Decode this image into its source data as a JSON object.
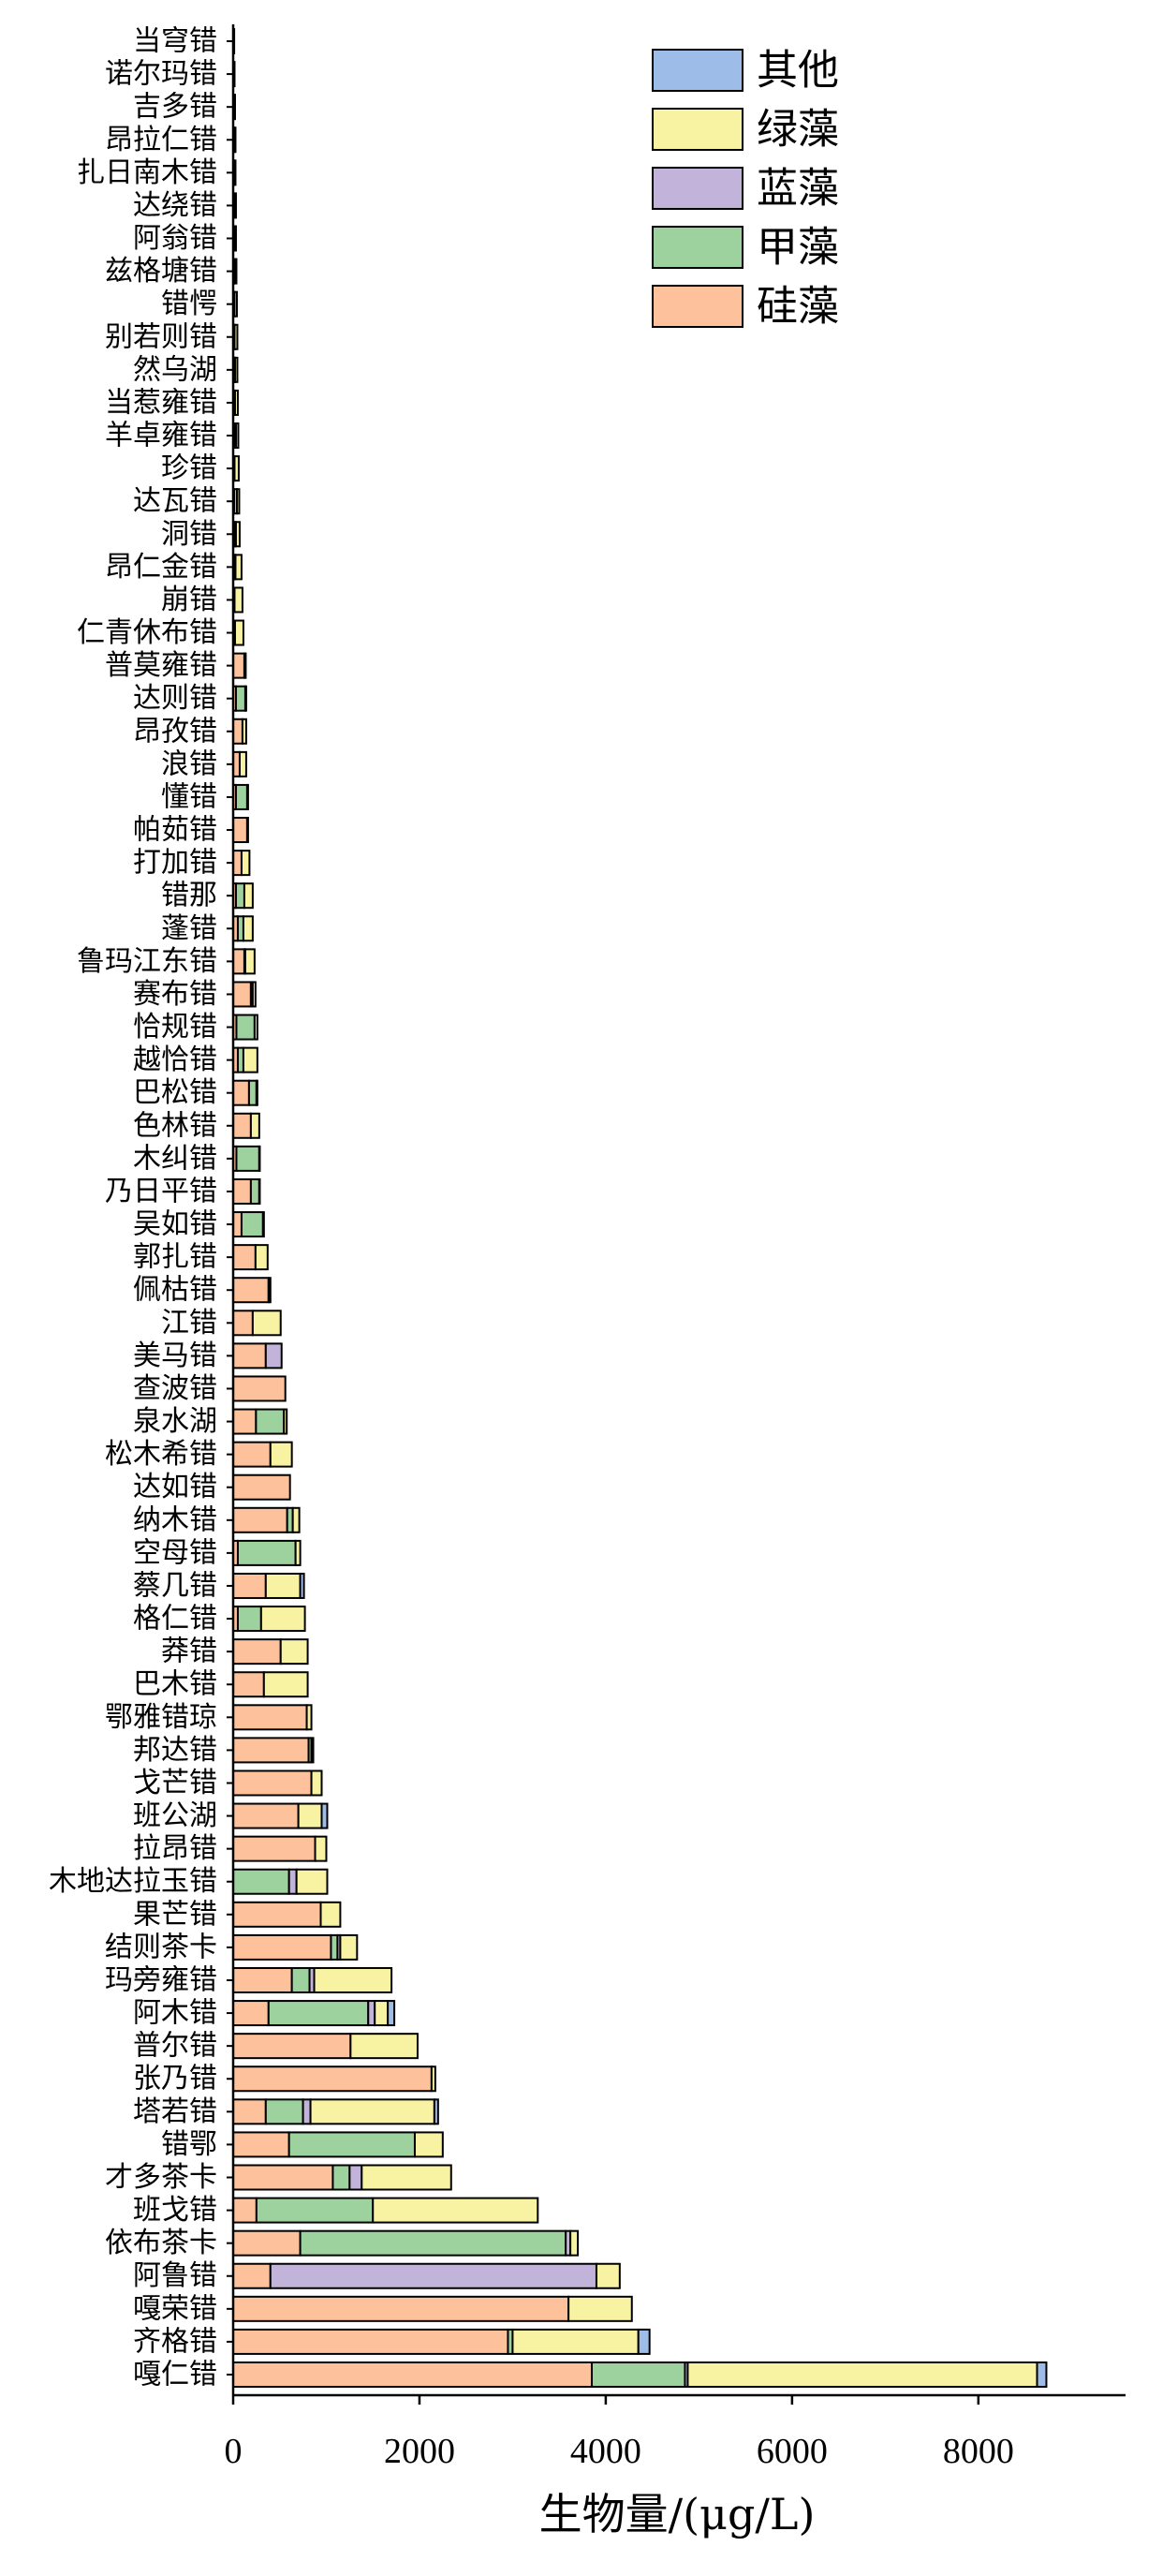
{
  "chart_data": {
    "type": "bar",
    "horizontal": true,
    "stacked": true,
    "title": "",
    "xlabel": "生物量/(μg/L)",
    "ylabel": "",
    "xlim": [
      0,
      9580
    ],
    "xticks": [
      0,
      2000,
      4000,
      6000,
      8000
    ],
    "grid": false,
    "legend": "top-right",
    "categories": [
      "当穹错",
      "诺尔玛错",
      "吉多错",
      "昂拉仁错",
      "扎日南木错",
      "达绕错",
      "阿翁错",
      "兹格塘错",
      "错愕",
      "别若则错",
      "然乌湖",
      "当惹雍错",
      "羊卓雍错",
      "珍错",
      "达瓦错",
      "洞错",
      "昂仁金错",
      "崩错",
      "仁青休布错",
      "普莫雍错",
      "达则错",
      "昂孜错",
      "浪错",
      "懂错",
      "帕茹错",
      "打加错",
      "错那",
      "蓬错",
      "鲁玛江东错",
      "赛布错",
      "恰规错",
      "越恰错",
      "巴松错",
      "色林错",
      "木纠错",
      "乃日平错",
      "吴如错",
      "郭扎错",
      "佩枯错",
      "江错",
      "美马错",
      "查波错",
      "泉水湖",
      "松木希错",
      "达如错",
      "纳木错",
      "空母错",
      "蔡几错",
      "格仁错",
      "莽错",
      "巴木错",
      "鄂雅错琼",
      "邦达错",
      "戈芒错",
      "班公湖",
      "拉昂错",
      "木地达拉玉错",
      "果芒错",
      "结则茶卡",
      "玛旁雍错",
      "阿木错",
      "普尔错",
      "张乃错",
      "塔若错",
      "错鄂",
      "才多茶卡",
      "班戈错",
      "依布茶卡",
      "阿鲁错",
      "嘎荣错",
      "齐格错",
      "嘎仁错"
    ],
    "series": [
      {
        "name": "硅藻",
        "color": "#FDC19C",
        "values": [
          5,
          5,
          5,
          5,
          5,
          10,
          10,
          10,
          10,
          10,
          10,
          10,
          10,
          10,
          10,
          10,
          20,
          15,
          20,
          120,
          30,
          100,
          70,
          30,
          150,
          90,
          30,
          50,
          120,
          190,
          35,
          50,
          170,
          190,
          35,
          190,
          90,
          240,
          380,
          210,
          350,
          560,
          245,
          400,
          610,
          580,
          50,
          350,
          50,
          510,
          330,
          790,
          810,
          840,
          700,
          880,
          0,
          940,
          1050,
          630,
          380,
          1260,
          2130,
          350,
          600,
          1070,
          250,
          720,
          400,
          3600,
          2950,
          3850
        ]
      },
      {
        "name": "甲藻",
        "color": "#9DD19E",
        "values": [
          0,
          0,
          0,
          5,
          5,
          5,
          5,
          5,
          5,
          5,
          10,
          10,
          20,
          5,
          30,
          20,
          5,
          0,
          0,
          5,
          100,
          0,
          0,
          120,
          0,
          0,
          90,
          60,
          10,
          20,
          195,
          60,
          80,
          0,
          245,
          90,
          230,
          0,
          20,
          0,
          0,
          0,
          300,
          0,
          0,
          60,
          620,
          0,
          250,
          0,
          0,
          0,
          30,
          0,
          0,
          0,
          600,
          0,
          70,
          190,
          1070,
          0,
          0,
          400,
          1350,
          180,
          1250,
          2850,
          0,
          0,
          50,
          1000
        ]
      },
      {
        "name": "蓝藻",
        "color": "#C2B3DB",
        "values": [
          0,
          0,
          0,
          0,
          0,
          0,
          0,
          0,
          0,
          0,
          0,
          0,
          0,
          0,
          0,
          0,
          0,
          0,
          0,
          0,
          0,
          0,
          0,
          0,
          0,
          0,
          0,
          0,
          0,
          0,
          0,
          0,
          0,
          0,
          0,
          0,
          0,
          0,
          0,
          0,
          170,
          0,
          0,
          0,
          0,
          0,
          0,
          0,
          0,
          0,
          0,
          0,
          0,
          0,
          0,
          0,
          80,
          0,
          30,
          50,
          70,
          0,
          0,
          80,
          0,
          130,
          0,
          50,
          3500,
          0,
          0,
          30
        ]
      },
      {
        "name": "绿藻",
        "color": "#F8F2A3",
        "values": [
          5,
          10,
          15,
          15,
          15,
          15,
          15,
          20,
          25,
          30,
          25,
          30,
          25,
          45,
          25,
          40,
          65,
          85,
          90,
          10,
          10,
          40,
          70,
          10,
          10,
          85,
          90,
          100,
          100,
          30,
          30,
          150,
          10,
          90,
          5,
          5,
          10,
          130,
          0,
          300,
          0,
          0,
          30,
          230,
          0,
          70,
          50,
          370,
          470,
          290,
          470,
          50,
          20,
          110,
          250,
          120,
          330,
          210,
          180,
          830,
          140,
          720,
          40,
          1330,
          300,
          960,
          1770,
          80,
          250,
          680,
          1350,
          3750
        ]
      },
      {
        "name": "其他",
        "color": "#9EBCE8",
        "values": [
          0,
          0,
          0,
          0,
          0,
          0,
          0,
          0,
          0,
          0,
          0,
          0,
          0,
          0,
          0,
          0,
          0,
          0,
          0,
          0,
          0,
          0,
          0,
          0,
          0,
          0,
          0,
          0,
          0,
          0,
          0,
          0,
          0,
          0,
          0,
          0,
          0,
          0,
          0,
          0,
          0,
          0,
          0,
          0,
          0,
          0,
          0,
          40,
          0,
          0,
          0,
          0,
          0,
          0,
          60,
          0,
          0,
          0,
          0,
          0,
          70,
          0,
          0,
          40,
          0,
          0,
          0,
          0,
          0,
          0,
          120,
          100
        ]
      }
    ]
  }
}
